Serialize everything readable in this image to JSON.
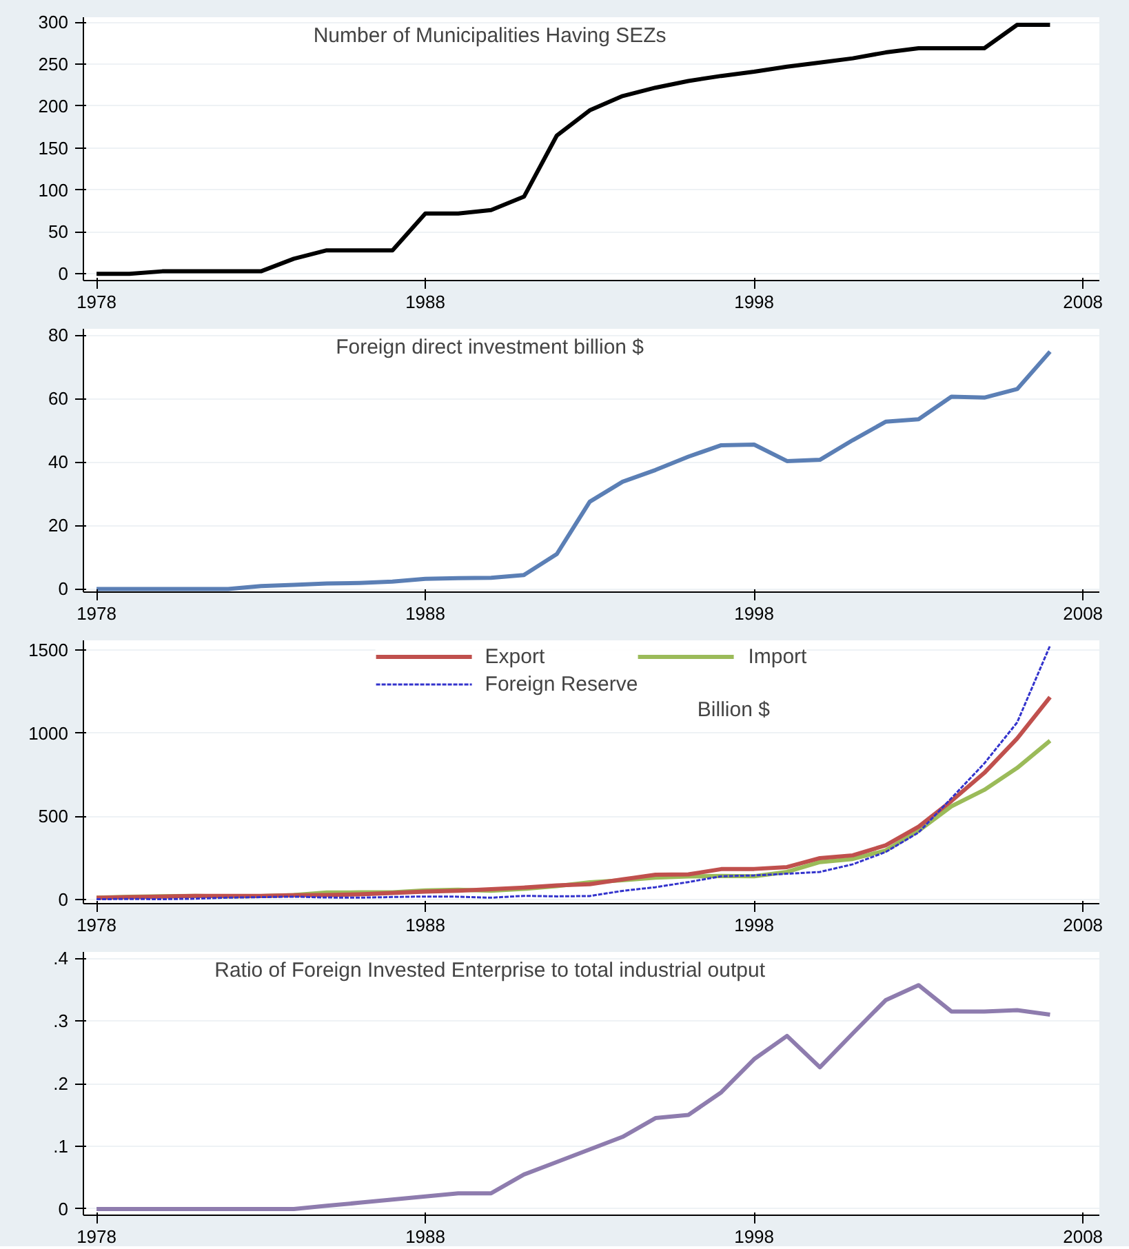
{
  "chart_data": [
    {
      "type": "line",
      "title": "Number of Municipalities Having SEZs",
      "x": [
        1978,
        1979,
        1980,
        1981,
        1982,
        1983,
        1984,
        1985,
        1986,
        1987,
        1988,
        1989,
        1990,
        1991,
        1992,
        1993,
        1994,
        1995,
        1996,
        1997,
        1998,
        1999,
        2000,
        2001,
        2002,
        2003,
        2004,
        2005,
        2006,
        2007
      ],
      "xlim": [
        1977.6,
        2008.5
      ],
      "xticks": [
        1978,
        1988,
        1998,
        2008
      ],
      "ylim": [
        -8,
        306
      ],
      "yticks": [
        0,
        50,
        100,
        150,
        200,
        250,
        300
      ],
      "grid": "y",
      "legend": false,
      "series": [
        {
          "color": "#000000",
          "values": [
            0,
            0,
            3,
            3,
            3,
            3,
            18,
            28,
            28,
            28,
            72,
            72,
            76,
            92,
            165,
            195,
            212,
            222,
            230,
            236,
            241,
            247,
            252,
            257,
            264,
            269,
            269,
            269,
            297,
            297
          ]
        }
      ]
    },
    {
      "type": "line",
      "title": "Foreign direct investment billion $",
      "x": [
        1978,
        1979,
        1980,
        1981,
        1982,
        1983,
        1984,
        1985,
        1986,
        1987,
        1988,
        1989,
        1990,
        1991,
        1992,
        1993,
        1994,
        1995,
        1996,
        1997,
        1998,
        1999,
        2000,
        2001,
        2002,
        2003,
        2004,
        2005,
        2006,
        2007
      ],
      "xlim": [
        1977.6,
        2008.5
      ],
      "xticks": [
        1978,
        1988,
        1998,
        2008
      ],
      "ylim": [
        -1,
        82
      ],
      "yticks": [
        0,
        20,
        40,
        60,
        80
      ],
      "grid": "y",
      "legend": false,
      "series": [
        {
          "color": "#5b7fb5",
          "values": [
            0,
            0,
            0,
            0,
            0,
            0.9,
            1.3,
            1.7,
            1.9,
            2.3,
            3.2,
            3.4,
            3.5,
            4.4,
            11,
            27.5,
            33.8,
            37.5,
            41.7,
            45.3,
            45.5,
            40.3,
            40.7,
            46.9,
            52.7,
            53.5,
            60.6,
            60.3,
            63,
            74.8
          ]
        }
      ]
    },
    {
      "type": "line",
      "title": "Billion $",
      "x": [
        1978,
        1979,
        1980,
        1981,
        1982,
        1983,
        1984,
        1985,
        1986,
        1987,
        1988,
        1989,
        1990,
        1991,
        1992,
        1993,
        1994,
        1995,
        1996,
        1997,
        1998,
        1999,
        2000,
        2001,
        2002,
        2003,
        2004,
        2005,
        2006,
        2007
      ],
      "xlim": [
        1977.6,
        2008.5
      ],
      "xticks": [
        1978,
        1988,
        1998,
        2008
      ],
      "ylim": [
        -25,
        1560
      ],
      "yticks": [
        0,
        500,
        1000,
        1500
      ],
      "grid": "y",
      "legend": "top",
      "series": [
        {
          "name": "Export",
          "color": "#c0504d",
          "line_style": "solid",
          "values": [
            10,
            14,
            18,
            22,
            22,
            22,
            26,
            27,
            31,
            39,
            48,
            53,
            62,
            72,
            85,
            92,
            121,
            149,
            151,
            183,
            184,
            195,
            249,
            266,
            326,
            438,
            593,
            762,
            969,
            1218
          ]
        },
        {
          "name": "Import",
          "color": "#9bbb59",
          "line_style": "solid",
          "values": [
            11,
            16,
            20,
            22,
            19,
            21,
            27,
            42,
            43,
            43,
            55,
            59,
            53,
            64,
            81,
            104,
            116,
            132,
            139,
            142,
            140,
            166,
            225,
            244,
            295,
            413,
            561,
            660,
            792,
            956
          ]
        },
        {
          "name": "Foreign Reserve",
          "color": "#3333cc",
          "line_style": "dashed",
          "values": [
            2,
            3,
            2,
            5,
            11,
            14,
            17,
            12,
            11,
            15,
            18,
            17,
            11,
            22,
            19,
            21,
            52,
            74,
            105,
            140,
            145,
            155,
            166,
            212,
            286,
            403,
            610,
            819,
            1066,
            1528
          ]
        }
      ]
    },
    {
      "type": "line",
      "title": "Ratio of Foreign Invested Enterprise to total industrial output",
      "x": [
        1978,
        1979,
        1980,
        1981,
        1982,
        1983,
        1984,
        1985,
        1986,
        1987,
        1988,
        1989,
        1990,
        1991,
        1992,
        1993,
        1994,
        1995,
        1996,
        1997,
        1998,
        1999,
        2000,
        2001,
        2002,
        2003,
        2004,
        2005,
        2006,
        2007
      ],
      "xlim": [
        1977.6,
        2008.5
      ],
      "xticks": [
        1978,
        1988,
        1998,
        2008
      ],
      "ylim": [
        -0.01,
        0.41
      ],
      "yticks": [
        0,
        {
          "value": 0.1,
          "label": ".1"
        },
        {
          "value": 0.2,
          "label": ".2"
        },
        {
          "value": 0.3,
          "label": ".3"
        },
        {
          "value": 0.4,
          "label": ".4"
        }
      ],
      "grid": "y",
      "legend": false,
      "series": [
        {
          "color": "#8e7cae",
          "values": [
            0,
            0,
            0,
            0,
            0,
            0,
            0,
            0.005,
            0.01,
            0.015,
            0.02,
            0.025,
            0.025,
            0.055,
            0.075,
            0.095,
            0.115,
            0.145,
            0.15,
            0.186,
            0.239,
            0.276,
            0.226,
            0.28,
            0.333,
            0.357,
            0.315,
            0.315,
            0.317,
            0.31
          ]
        }
      ]
    }
  ]
}
